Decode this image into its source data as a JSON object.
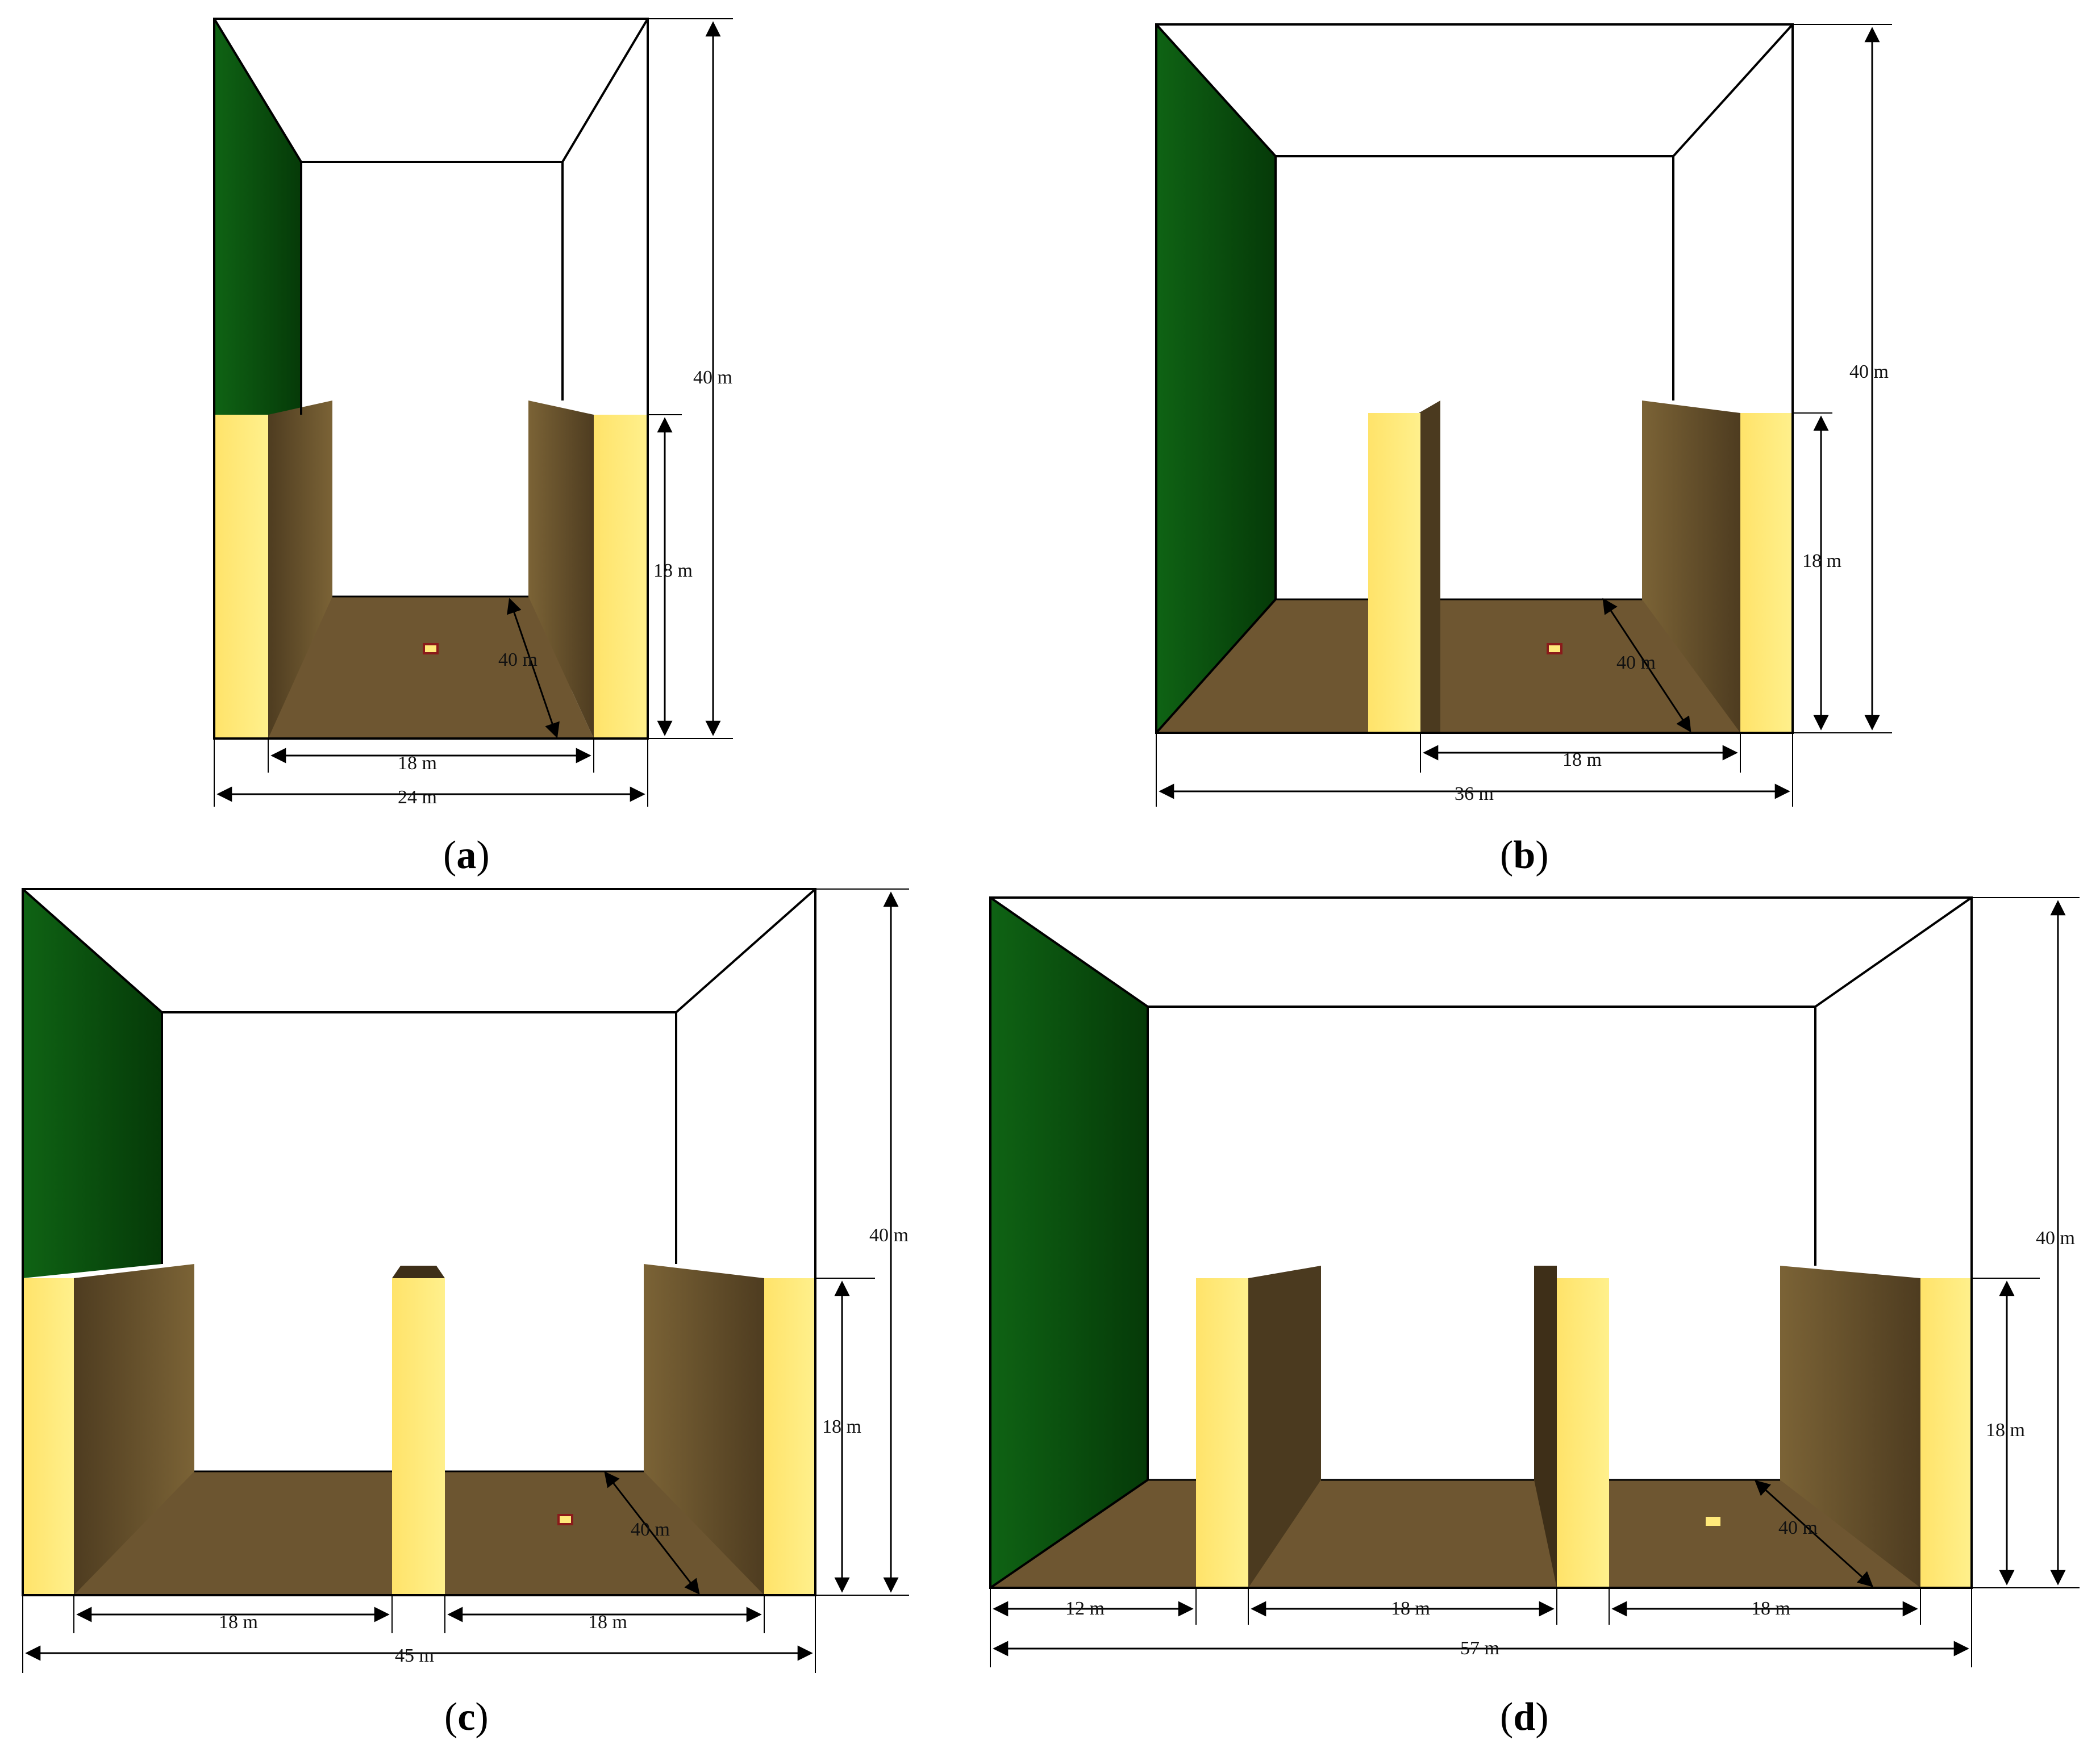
{
  "colors": {
    "green_wall": "#0e5a12",
    "green_wall_dark": "#063b08",
    "floor": "#6f5833",
    "wall_brown": "#5c4727",
    "wall_brown_light": "#7a6235",
    "wall_yellow": "#ffe97a",
    "wall_yellow_edge": "#f0d65a",
    "outline": "#000000"
  },
  "panels": [
    {
      "id": "a",
      "caption": "(a)",
      "caption_letter": "a",
      "labels": {
        "height_total": "40 m",
        "height_wall": "18 m",
        "depth": "40 m",
        "width_inner": "18 m",
        "width_total": "24 m"
      }
    },
    {
      "id": "b",
      "caption": "(b)",
      "caption_letter": "b",
      "labels": {
        "height_total": "40 m",
        "height_wall": "18 m",
        "depth": "40 m",
        "width_inner": "18 m",
        "width_total": "36 m"
      }
    },
    {
      "id": "c",
      "caption": "(c)",
      "caption_letter": "c",
      "labels": {
        "height_total": "40 m",
        "height_wall": "18 m",
        "depth": "40 m",
        "width_left": "18 m",
        "width_right": "18 m",
        "width_total": "45 m"
      }
    },
    {
      "id": "d",
      "caption": "(d)",
      "caption_letter": "d",
      "labels": {
        "height_total": "40 m",
        "height_wall": "18 m",
        "depth": "40 m",
        "width_first": "12 m",
        "width_mid": "18 m",
        "width_right": "18 m",
        "width_total": "57 m"
      }
    }
  ]
}
